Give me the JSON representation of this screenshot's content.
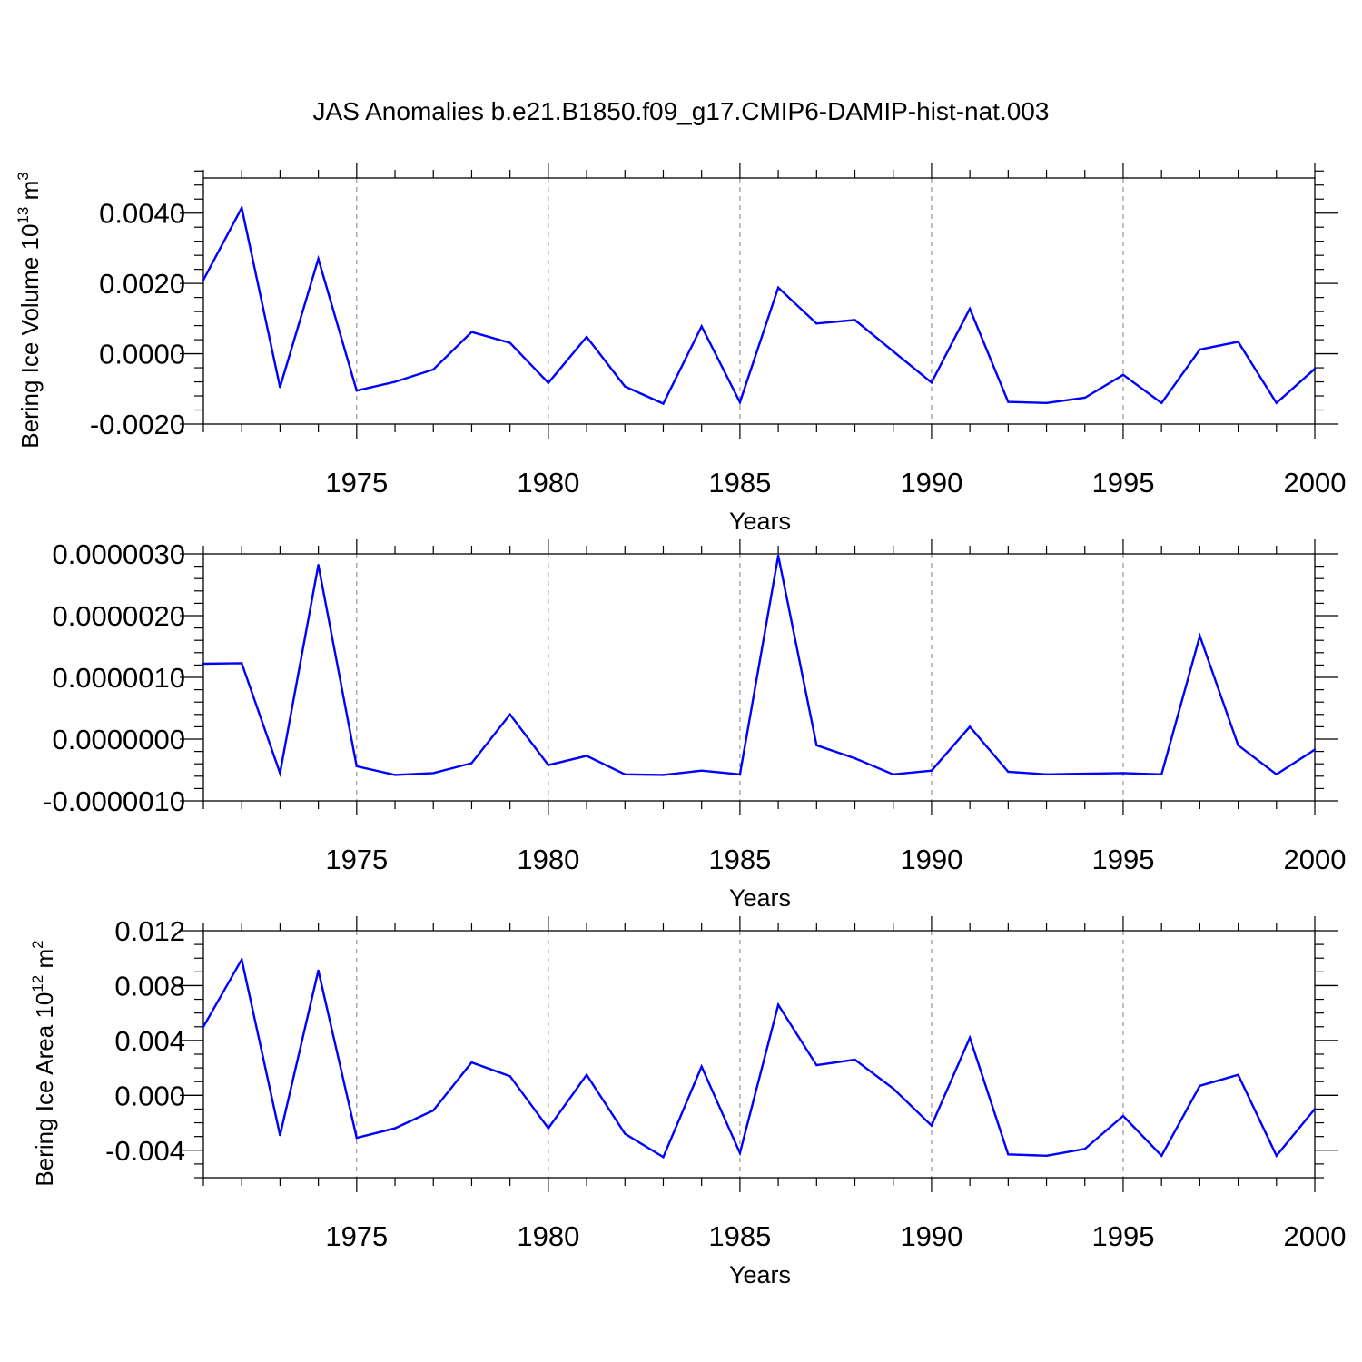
{
  "title": "JAS Anomalies b.e21.B1850.f09_g17.CMIP6-DAMIP-hist-nat.003",
  "colors": {
    "line": "#0000ff",
    "axis": "#000000",
    "grid": "#808080",
    "background": "#ffffff"
  },
  "chart_data": [
    {
      "type": "line",
      "name": "volume",
      "title": "JAS Anomalies b.e21.B1850.f09_g17.CMIP6-DAMIP-hist-nat.003",
      "xlabel": "Years",
      "ylabel": "Bering Ice Volume 10",
      "ylabel_sup": "13",
      "ylabel_unit": " m",
      "ylabel_unit_sup": "3",
      "xlim": [
        1971,
        2000
      ],
      "ylim": [
        -0.002,
        0.005
      ],
      "yticks": [
        -0.002,
        0.0,
        0.002,
        0.004
      ],
      "ytick_labels": [
        "-0.0020",
        "0.0000",
        "0.0020",
        "0.0040"
      ],
      "yminor_step": 0.0004,
      "xticks": [
        1975,
        1980,
        1985,
        1990,
        1995,
        2000
      ],
      "xtick_labels": [
        "1975",
        "1980",
        "1985",
        "1990",
        "1995",
        "2000"
      ],
      "grid": "vertical dashed at major x ticks",
      "x": [
        1971,
        1972,
        1973,
        1974,
        1975,
        1976,
        1977,
        1978,
        1979,
        1980,
        1981,
        1982,
        1983,
        1984,
        1985,
        1986,
        1987,
        1988,
        1989,
        1990,
        1991,
        1992,
        1993,
        1994,
        1995,
        1996,
        1997,
        1998,
        1999,
        2000
      ],
      "values": [
        0.0021,
        0.00415,
        -0.00095,
        0.0027,
        -0.00105,
        -0.0008,
        -0.00045,
        0.00062,
        0.00031,
        -0.00083,
        0.00048,
        -0.00093,
        -0.00142,
        0.00078,
        -0.00138,
        0.00188,
        0.00086,
        0.00096,
        7e-05,
        -0.00082,
        0.00128,
        -0.00137,
        -0.0014,
        -0.00125,
        -0.0006,
        -0.0014,
        0.00012,
        0.00034,
        -0.0014,
        -0.00043
      ]
    },
    {
      "type": "line",
      "name": "thickness",
      "xlabel": "Years",
      "ylabel": "",
      "xlim": [
        1971,
        2000
      ],
      "ylim": [
        -1e-06,
        3e-06
      ],
      "yticks": [
        -1e-06,
        0.0,
        1e-06,
        2e-06,
        3e-06
      ],
      "ytick_labels": [
        "-0.0000010",
        "0.0000000",
        "0.0000010",
        "0.0000020",
        "0.0000030"
      ],
      "yminor_step": 2e-07,
      "xticks": [
        1975,
        1980,
        1985,
        1990,
        1995,
        2000
      ],
      "xtick_labels": [
        "1975",
        "1980",
        "1985",
        "1990",
        "1995",
        "2000"
      ],
      "grid": "vertical dashed at major x ticks",
      "x": [
        1971,
        1972,
        1973,
        1974,
        1975,
        1976,
        1977,
        1978,
        1979,
        1980,
        1981,
        1982,
        1983,
        1984,
        1985,
        1986,
        1987,
        1988,
        1989,
        1990,
        1991,
        1992,
        1993,
        1994,
        1995,
        1996,
        1997,
        1998,
        1999,
        2000
      ],
      "values": [
        1.22e-06,
        1.23e-06,
        -5.5e-07,
        2.82e-06,
        -4.4e-07,
        -5.8e-07,
        -5.5e-07,
        -3.9e-07,
        4e-07,
        -4.2e-07,
        -2.7e-07,
        -5.7e-07,
        -5.8e-07,
        -5.1e-07,
        -5.7e-07,
        2.97e-06,
        -1e-07,
        -3.1e-07,
        -5.7e-07,
        -5.1e-07,
        2e-07,
        -5.3e-07,
        -5.7e-07,
        -5.6e-07,
        -5.5e-07,
        -5.7e-07,
        1.67e-06,
        -1e-07,
        -5.7e-07,
        -1.7e-07
      ]
    },
    {
      "type": "line",
      "name": "area",
      "xlabel": "Years",
      "ylabel": "Bering Ice Area 10",
      "ylabel_sup": "12",
      "ylabel_unit": " m",
      "ylabel_unit_sup": "2",
      "xlim": [
        1971,
        2000
      ],
      "ylim": [
        -0.006,
        0.012
      ],
      "yticks": [
        -0.004,
        0.0,
        0.004,
        0.008,
        0.012
      ],
      "ytick_labels": [
        "-0.004",
        "0.000",
        "0.004",
        "0.008",
        "0.012"
      ],
      "yminor_step": 0.001,
      "xticks": [
        1975,
        1980,
        1985,
        1990,
        1995,
        2000
      ],
      "xtick_labels": [
        "1975",
        "1980",
        "1985",
        "1990",
        "1995",
        "2000"
      ],
      "grid": "vertical dashed at major x ticks",
      "x": [
        1971,
        1972,
        1973,
        1974,
        1975,
        1976,
        1977,
        1978,
        1979,
        1980,
        1981,
        1982,
        1983,
        1984,
        1985,
        1986,
        1987,
        1988,
        1989,
        1990,
        1991,
        1992,
        1993,
        1994,
        1995,
        1996,
        1997,
        1998,
        1999,
        2000
      ],
      "values": [
        0.005,
        0.0099,
        -0.0029,
        0.0091,
        -0.0031,
        -0.0024,
        -0.0011,
        0.0024,
        0.0014,
        -0.0024,
        0.0015,
        -0.0028,
        -0.0045,
        0.0021,
        -0.0042,
        0.0066,
        0.0022,
        0.0026,
        0.0005,
        -0.0022,
        0.0042,
        -0.0043,
        -0.0044,
        -0.0039,
        -0.0015,
        -0.0044,
        0.0007,
        0.0015,
        -0.0044,
        -0.001
      ]
    }
  ]
}
